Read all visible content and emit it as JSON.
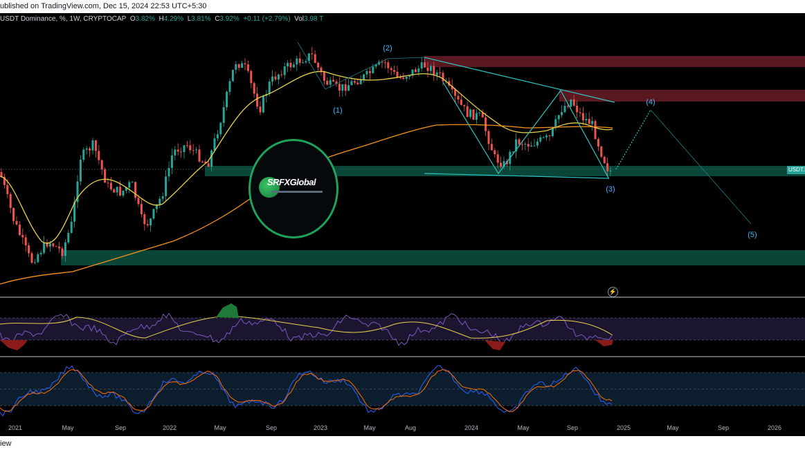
{
  "header": {
    "published_text": "ublished on TradingView.com, Dec 15, 2024 22:53 UTC+5:30"
  },
  "legend": {
    "symbol": "USDT Dominance, %, 1W, CRYPTOCAP",
    "open_label": "O",
    "open": "3.82%",
    "high_label": "H",
    "high": "4.29%",
    "low_label": "L",
    "low": "3.81%",
    "close_label": "C",
    "close": "3.92%",
    "change": "+0.11 (+2.79%)",
    "vol_label": "Vol",
    "vol": "3.98 T"
  },
  "price_tag": "USDT.D",
  "wave_labels": {
    "w1": "(1)",
    "w2": "(2)",
    "w3": "(3)",
    "w4": "(4)",
    "w5": "(5)"
  },
  "logo": {
    "brand": "SRFXGlobal"
  },
  "time_axis": {
    "labels": [
      "2021",
      "May",
      "Sep",
      "2022",
      "May",
      "Sep",
      "2023",
      "May",
      "Aug",
      "2024",
      "May",
      "Sep",
      "2025",
      "May",
      "Sep",
      "2026"
    ]
  },
  "footer": {
    "text": "iew"
  },
  "colors": {
    "background": "#000000",
    "up_candle": "#26a69a",
    "down_candle": "#ef5350",
    "ma_fast": "#e8d24a",
    "ma_slow": "#f7931a",
    "wave_lines": "#2ec4c4",
    "supply_zone": "#7a1f2b",
    "demand_zone": "#0e5c46",
    "rsi_line": "#7e57c2",
    "stoch_k": "#2962ff",
    "stoch_d": "#ff6d00"
  },
  "icons": {
    "lightning": "lightning-icon",
    "globe": "globe-icon"
  }
}
